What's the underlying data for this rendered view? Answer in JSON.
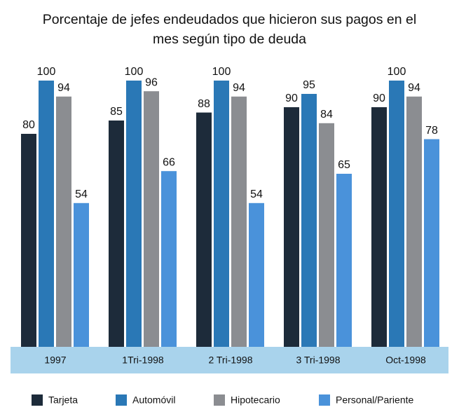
{
  "chart_data": {
    "type": "bar",
    "title": "Porcentaje de jefes endeudados que hicieron sus pagos en el\nmes según tipo de deuda",
    "categories": [
      "1997",
      "1Tri-1998",
      "2 Tri-1998",
      "3 Tri-1998",
      "Oct-1998"
    ],
    "series": [
      {
        "name": "Tarjeta",
        "color": "#1d2b3a",
        "values": [
          80,
          85,
          88,
          90,
          90
        ]
      },
      {
        "name": "Automóvil",
        "color": "#2a78b6",
        "values": [
          100,
          100,
          100,
          95,
          100
        ]
      },
      {
        "name": "Hipotecario",
        "color": "#8b8d91",
        "values": [
          94,
          96,
          94,
          84,
          94
        ]
      },
      {
        "name": "Personal/Pariente",
        "color": "#4a92da",
        "values": [
          54,
          66,
          54,
          65,
          78
        ]
      }
    ]
  }
}
